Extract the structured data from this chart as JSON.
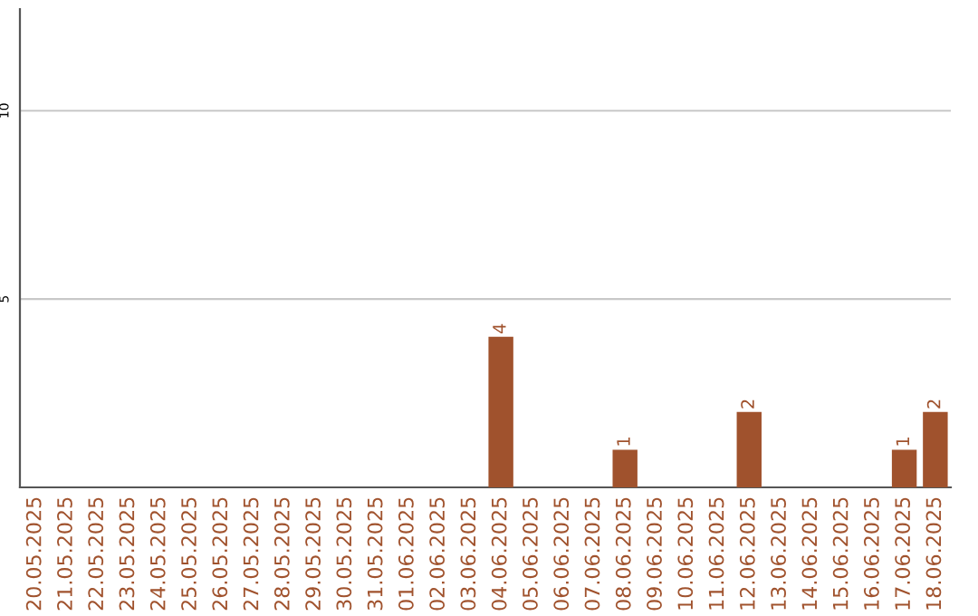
{
  "chart_data": {
    "type": "bar",
    "categories": [
      "20.05.2025",
      "21.05.2025",
      "22.05.2025",
      "23.05.2025",
      "24.05.2025",
      "25.05.2025",
      "26.05.2025",
      "27.05.2025",
      "28.05.2025",
      "29.05.2025",
      "30.05.2025",
      "31.05.2025",
      "01.06.2025",
      "02.06.2025",
      "03.06.2025",
      "04.06.2025",
      "05.06.2025",
      "06.06.2025",
      "07.06.2025",
      "08.06.2025",
      "09.06.2025",
      "10.06.2025",
      "11.06.2025",
      "12.06.2025",
      "13.06.2025",
      "14.06.2025",
      "15.06.2025",
      "16.06.2025",
      "17.06.2025",
      "18.06.2025"
    ],
    "values": [
      0,
      0,
      0,
      0,
      0,
      0,
      0,
      0,
      0,
      0,
      0,
      0,
      0,
      0,
      0,
      4,
      0,
      0,
      0,
      1,
      0,
      0,
      0,
      2,
      0,
      0,
      0,
      0,
      1,
      2
    ],
    "value_labels": [
      null,
      null,
      null,
      null,
      null,
      null,
      null,
      null,
      null,
      null,
      null,
      null,
      null,
      null,
      null,
      "4",
      null,
      null,
      null,
      "1",
      null,
      null,
      null,
      "2",
      null,
      null,
      null,
      null,
      "1",
      "2"
    ],
    "color": "#a0522d",
    "ylim": [
      0,
      12.7
    ],
    "yticks": [
      5,
      10
    ],
    "grid": "y"
  }
}
